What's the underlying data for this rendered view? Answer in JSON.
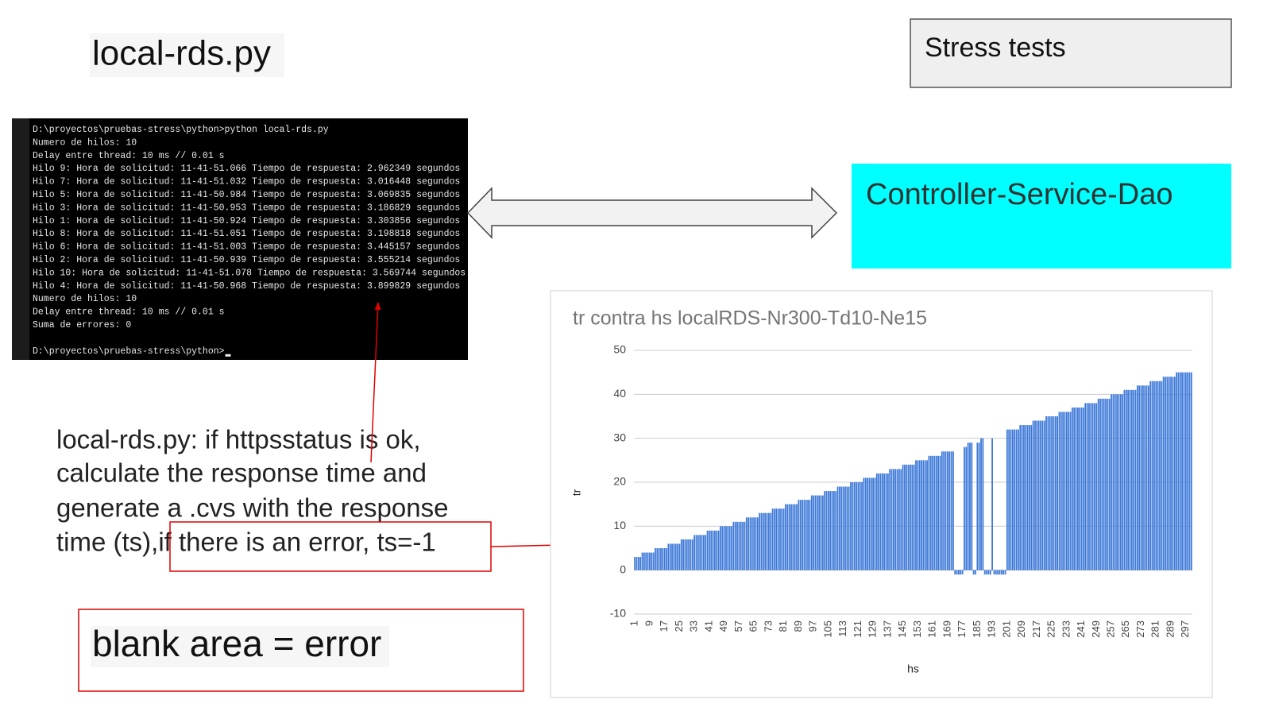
{
  "slide": {
    "title": "local-rds.py",
    "stress_label": "Stress tests",
    "box_label": "Controller-Service-Dao",
    "note_lines": [
      "local-rds.py: if httpsstatus is ok,",
      "calculate the response time and",
      "generate a .cvs with the response",
      "time (ts), "
    ],
    "note_highlight": "if there is an error, ts=-1",
    "blank_note": "blank area = error"
  },
  "terminal": {
    "lines": [
      "D:\\proyectos\\pruebas-stress\\python>python local-rds.py",
      "Numero de hilos: 10",
      "Delay entre thread: 10 ms // 0.01 s",
      "Hilo 9: Hora de solicitud: 11-41-51.066 Tiempo de respuesta: 2.962349 segundos",
      "Hilo 7: Hora de solicitud: 11-41-51.032 Tiempo de respuesta: 3.016448 segundos",
      "Hilo 5: Hora de solicitud: 11-41-50.984 Tiempo de respuesta: 3.069835 segundos",
      "Hilo 3: Hora de solicitud: 11-41-50.953 Tiempo de respuesta: 3.186829 segundos",
      "Hilo 1: Hora de solicitud: 11-41-50.924 Tiempo de respuesta: 3.303856 segundos",
      "Hilo 8: Hora de solicitud: 11-41-51.051 Tiempo de respuesta: 3.198818 segundos",
      "Hilo 6: Hora de solicitud: 11-41-51.003 Tiempo de respuesta: 3.445157 segundos",
      "Hilo 2: Hora de solicitud: 11-41-50.939 Tiempo de respuesta: 3.555214 segundos",
      "Hilo 10: Hora de solicitud: 11-41-51.078 Tiempo de respuesta: 3.569744 segundos",
      "Hilo 4: Hora de solicitud: 11-41-50.968 Tiempo de respuesta: 3.899829 segundos",
      "Numero de hilos: 10",
      "Delay entre thread: 10 ms // 0.01 s",
      "Suma de errores: 0"
    ],
    "prompt": "D:\\proyectos\\pruebas-stress\\python>"
  },
  "chart_data": {
    "type": "bar",
    "title": "tr contra hs localRDS-Nr300-Td10-Ne15",
    "x_label": "hs",
    "y_label": "tr",
    "color": "#3c78d8",
    "grid": true,
    "ylim": [
      -10,
      50
    ],
    "yticks": [
      -10,
      0,
      10,
      20,
      30,
      40,
      50
    ],
    "categories": [
      "1",
      null,
      null,
      null,
      null,
      null,
      null,
      null,
      "9",
      null,
      null,
      null,
      null,
      null,
      null,
      null,
      "17",
      null,
      null,
      null,
      null,
      null,
      null,
      null,
      "25",
      null,
      null,
      null,
      null,
      null,
      null,
      null,
      "33",
      null,
      null,
      null,
      null,
      null,
      null,
      null,
      "41",
      null,
      null,
      null,
      null,
      null,
      null,
      null,
      "49",
      null,
      null,
      null,
      null,
      null,
      null,
      null,
      "57",
      null,
      null,
      null,
      null,
      null,
      null,
      null,
      "65",
      null,
      null,
      null,
      null,
      null,
      null,
      null,
      "73",
      null,
      null,
      null,
      null,
      null,
      null,
      null,
      "81",
      null,
      null,
      null,
      null,
      null,
      null,
      null,
      "89",
      null,
      null,
      null,
      null,
      null,
      null,
      null,
      "97",
      null,
      null,
      null,
      null,
      null,
      null,
      null,
      "105",
      null,
      null,
      null,
      null,
      null,
      null,
      null,
      "113",
      null,
      null,
      null,
      null,
      null,
      null,
      null,
      "121",
      null,
      null,
      null,
      null,
      null,
      null,
      null,
      "129",
      null,
      null,
      null,
      null,
      null,
      null,
      null,
      "137",
      null,
      null,
      null,
      null,
      null,
      null,
      null,
      "145",
      null,
      null,
      null,
      null,
      null,
      null,
      null,
      "153",
      null,
      null,
      null,
      null,
      null,
      null,
      null,
      "161",
      null,
      null,
      null,
      null,
      null,
      null,
      null,
      "169",
      null,
      null,
      null,
      null,
      null,
      null,
      null,
      "177",
      null,
      null,
      null,
      null,
      null,
      null,
      null,
      "185",
      null,
      null,
      null,
      null,
      null,
      null,
      null,
      "193",
      null,
      null,
      null,
      null,
      null,
      null,
      null,
      "201",
      null,
      null,
      null,
      null,
      null,
      null,
      null,
      "209",
      null,
      null,
      null,
      null,
      null,
      null,
      null,
      "217",
      null,
      null,
      null,
      null,
      null,
      null,
      null,
      "225",
      null,
      null,
      null,
      null,
      null,
      null,
      null,
      "233",
      null,
      null,
      null,
      null,
      null,
      null,
      null,
      "241",
      null,
      null,
      null,
      null,
      null,
      null,
      null,
      "249",
      null,
      null,
      null,
      null,
      null,
      null,
      null,
      "257",
      null,
      null,
      null,
      null,
      null,
      null,
      null,
      "265",
      null,
      null,
      null,
      null,
      null,
      null,
      null,
      "273",
      null,
      null,
      null,
      null,
      null,
      null,
      null,
      "281",
      null,
      null,
      null,
      null,
      null,
      null,
      null,
      "289",
      null,
      null,
      null,
      null,
      null,
      null,
      null,
      "297",
      null,
      null,
      null
    ],
    "values": [
      3,
      3,
      3,
      3,
      4,
      4,
      4,
      4,
      4,
      4,
      4,
      5,
      5,
      5,
      5,
      5,
      5,
      5,
      6,
      6,
      6,
      6,
      6,
      6,
      6,
      7,
      7,
      7,
      7,
      7,
      7,
      7,
      8,
      8,
      8,
      8,
      8,
      8,
      8,
      9,
      9,
      9,
      9,
      9,
      9,
      9,
      10,
      10,
      10,
      10,
      10,
      10,
      10,
      11,
      11,
      11,
      11,
      11,
      11,
      11,
      12,
      12,
      12,
      12,
      12,
      12,
      12,
      13,
      13,
      13,
      13,
      13,
      13,
      13,
      14,
      14,
      14,
      14,
      14,
      14,
      14,
      15,
      15,
      15,
      15,
      15,
      15,
      15,
      16,
      16,
      16,
      16,
      16,
      16,
      16,
      17,
      17,
      17,
      17,
      17,
      17,
      17,
      18,
      18,
      18,
      18,
      18,
      18,
      18,
      19,
      19,
      19,
      19,
      19,
      19,
      19,
      20,
      20,
      20,
      20,
      20,
      20,
      20,
      21,
      21,
      21,
      21,
      21,
      21,
      21,
      22,
      22,
      22,
      22,
      22,
      22,
      22,
      23,
      23,
      23,
      23,
      23,
      23,
      23,
      24,
      24,
      24,
      24,
      24,
      24,
      24,
      25,
      25,
      25,
      25,
      25,
      25,
      25,
      26,
      26,
      26,
      26,
      26,
      26,
      26,
      27,
      27,
      27,
      27,
      27,
      27,
      27,
      -1,
      -1,
      -1,
      -1,
      -1,
      28,
      28,
      29,
      29,
      29,
      -1,
      -1,
      29,
      29,
      30,
      30,
      -1,
      -1,
      -1,
      -1,
      30,
      -1,
      -1,
      -1,
      -1,
      -1,
      -1,
      -1,
      32,
      32,
      32,
      32,
      32,
      32,
      32,
      33,
      33,
      33,
      33,
      33,
      33,
      33,
      34,
      34,
      34,
      34,
      34,
      34,
      34,
      35,
      35,
      35,
      35,
      35,
      35,
      35,
      36,
      36,
      36,
      36,
      36,
      36,
      36,
      37,
      37,
      37,
      37,
      37,
      37,
      37,
      38,
      38,
      38,
      38,
      38,
      38,
      38,
      39,
      39,
      39,
      39,
      39,
      39,
      39,
      40,
      40,
      40,
      40,
      40,
      40,
      40,
      41,
      41,
      41,
      41,
      41,
      41,
      41,
      42,
      42,
      42,
      42,
      42,
      42,
      42,
      43,
      43,
      43,
      43,
      43,
      43,
      43,
      44,
      44,
      44,
      44,
      44,
      44,
      44,
      45,
      45,
      45,
      45,
      45,
      45,
      45,
      45,
      45
    ]
  }
}
